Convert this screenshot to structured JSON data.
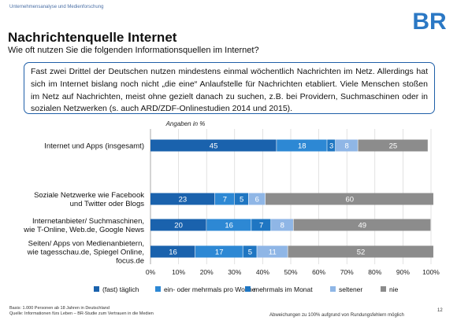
{
  "header": {
    "org": "Unternehmensanalyse und Medienforschung",
    "logo_text": "BR"
  },
  "title": "Nachrichtenquelle Internet",
  "subtitle": "Wie oft nutzen Sie die folgenden Informationsquellen im Internet?",
  "info_text": "Fast zwei Drittel der Deutschen nutzen mindestens einmal wöchentlich Nachrichten im Netz. Allerdings hat sich im Internet bislang noch nicht „die eine“ Anlaufstelle für Nachrichten etabliert. Viele Menschen stoßen im Netz auf Nachrichten, meist ohne gezielt danach zu suchen, z.B. bei Providern, Suchmaschinen oder in sozialen Netzwerken (s. auch ARD/ZDF-Onlinestudien 2014 und 2015).",
  "colors": {
    "accent": "#1f5fa8",
    "logo_blue": "#2b78c4",
    "series": [
      "#1a62ad",
      "#2d88d4",
      "#1f76c2",
      "#8fb6e6",
      "#8c8c8c"
    ]
  },
  "chart_data": {
    "type": "bar",
    "orientation": "horizontal",
    "stacked": true,
    "units_label": "Angaben in %",
    "categories": [
      [
        "Internet und Apps (insgesamt)"
      ],
      [
        "Soziale Netzwerke wie Facebook",
        "und Twitter oder Blogs"
      ],
      [
        "Internetanbieter/ Suchmaschinen,",
        "wie T-Online, Web.de, Google News"
      ],
      [
        "Seiten/ Apps von Medienanbietern,",
        "wie tagesschau.de, Spiegel Online,",
        "focus.de"
      ]
    ],
    "series": [
      {
        "name": "(fast) täglich",
        "values": [
          45,
          23,
          20,
          16
        ]
      },
      {
        "name": "ein- oder mehrmals pro Woche",
        "values": [
          18,
          7,
          16,
          17
        ]
      },
      {
        "name": "mehrmals im Monat",
        "values": [
          3,
          5,
          7,
          5
        ]
      },
      {
        "name": "seltener",
        "values": [
          8,
          6,
          8,
          11
        ]
      },
      {
        "name": "nie",
        "values": [
          25,
          60,
          49,
          52
        ]
      }
    ],
    "xlim": [
      0,
      100
    ],
    "xticks": [
      "0%",
      "10%",
      "20%",
      "30%",
      "40%",
      "50%",
      "60%",
      "70%",
      "80%",
      "90%",
      "100%"
    ],
    "grid": true,
    "legend_position": "bottom"
  },
  "footer": {
    "basis_line1": "Basis: 1.000 Personen ab 18 Jahren in Deutschland",
    "basis_line2": "Quelle: Informationen fürs Leben – BR-Studie zum Vertrauen in die Medien",
    "note": "Abweichungen zu 100% aufgrund von Rundungsfehlern möglich",
    "page": "12"
  }
}
